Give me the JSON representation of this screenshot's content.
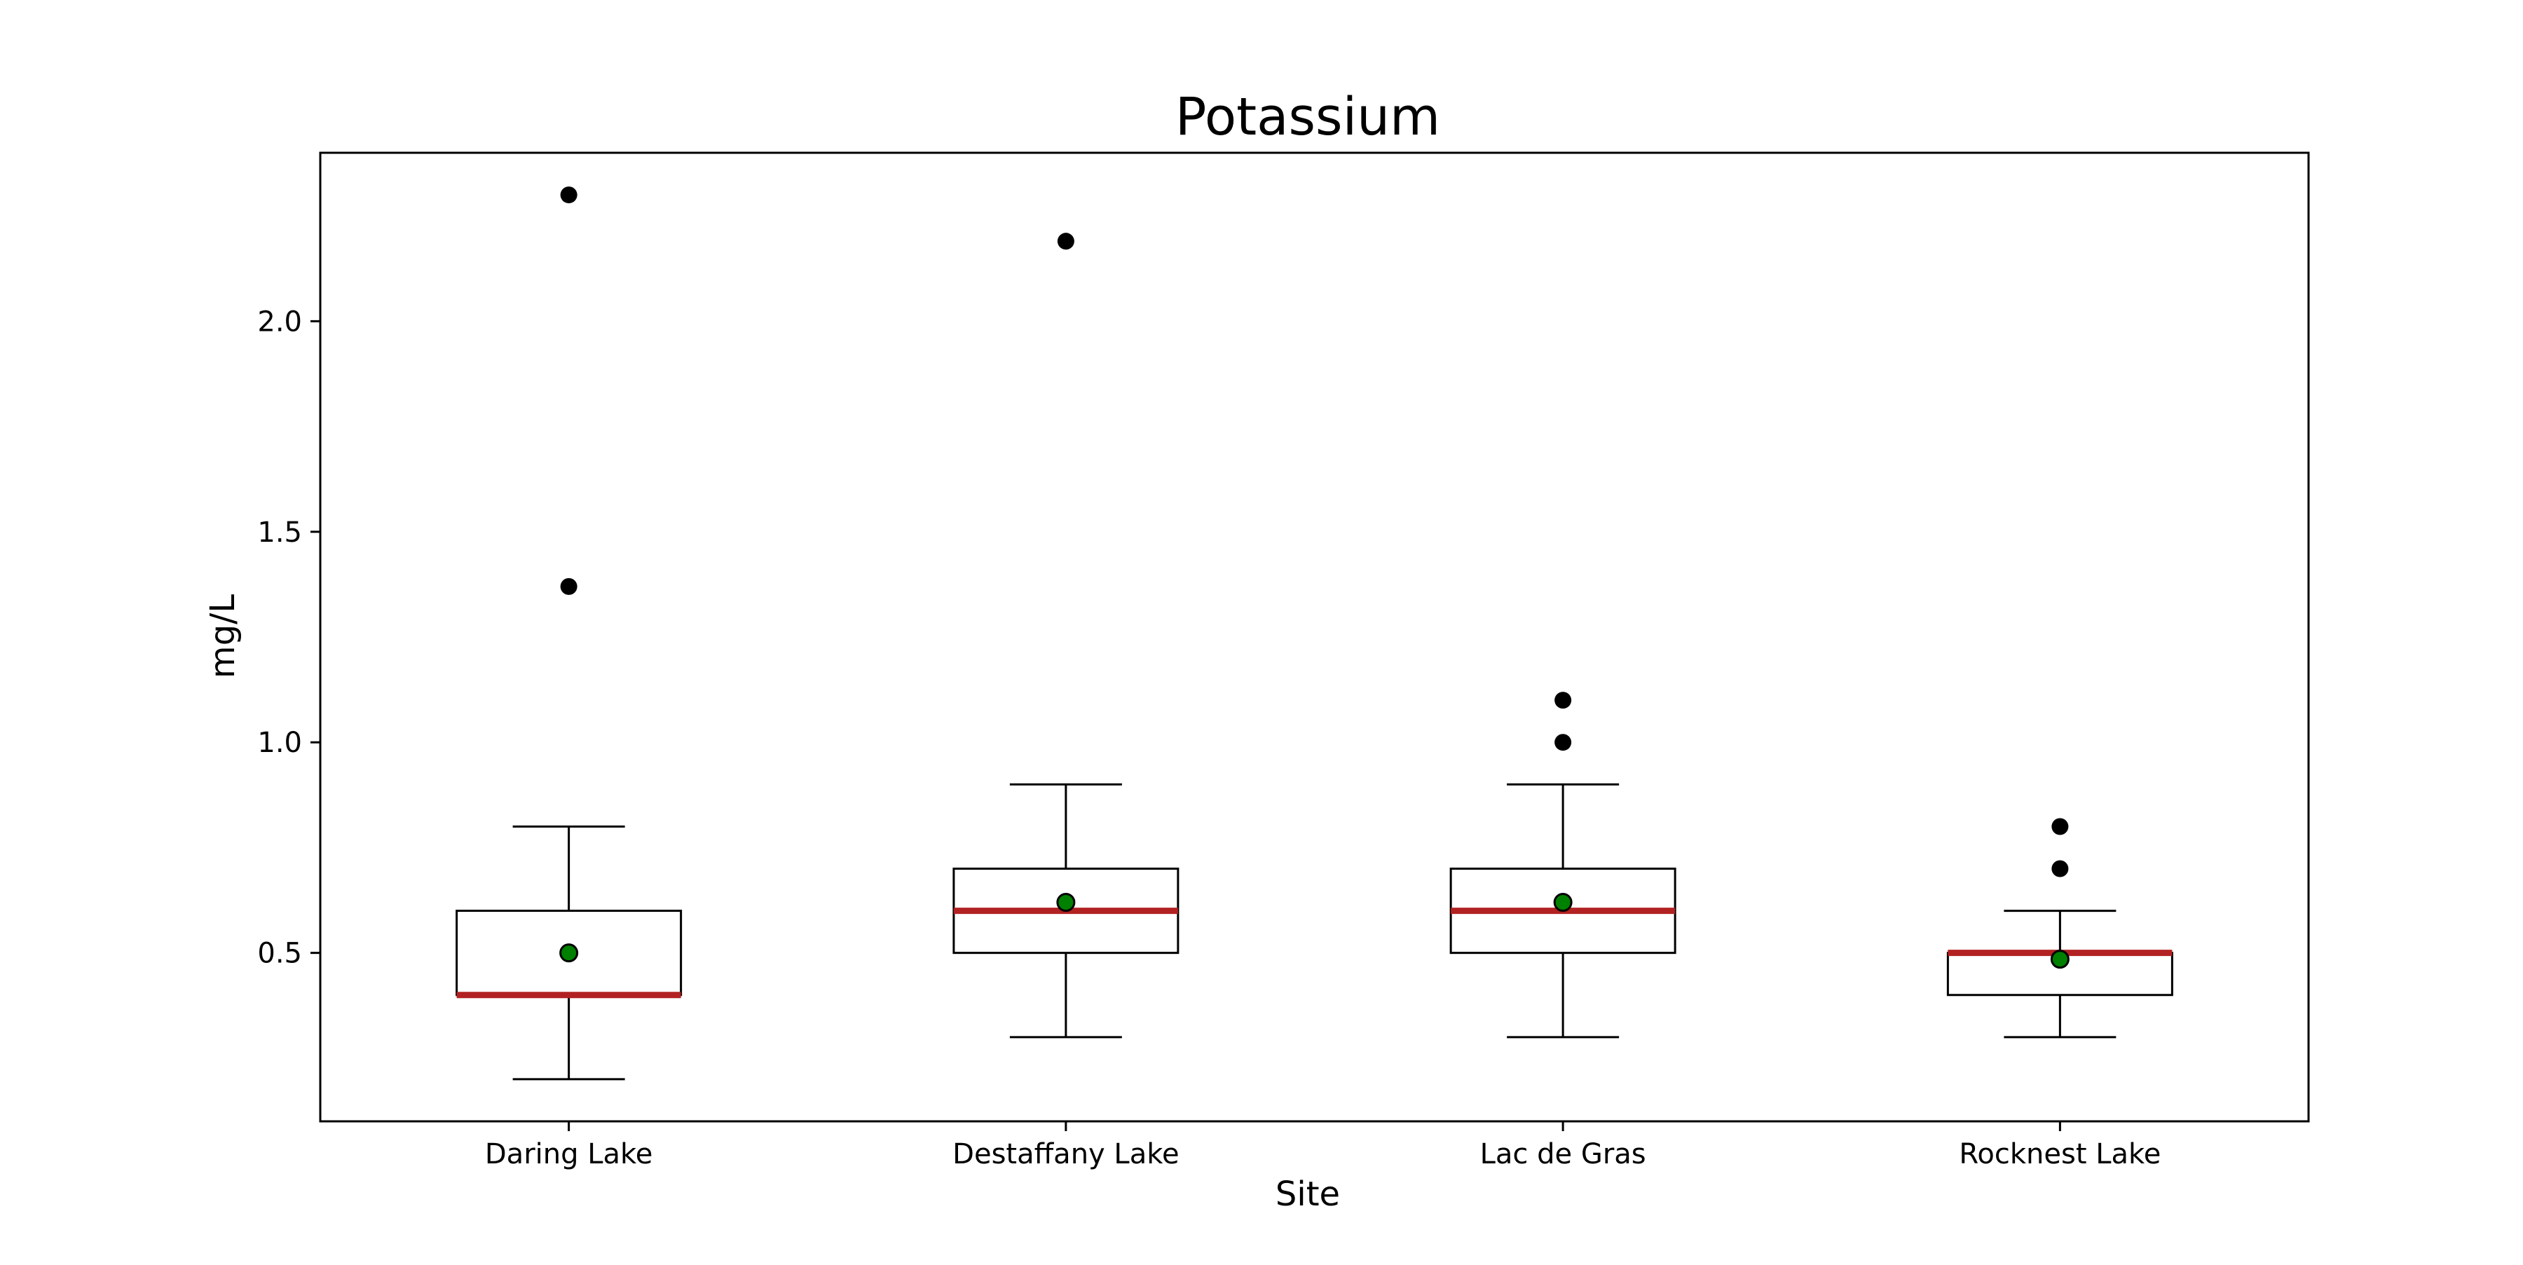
{
  "chart_data": {
    "type": "boxplot",
    "title": "Potassium",
    "xlabel": "Site",
    "ylabel": "mg/L",
    "ylim": [
      0.1,
      2.4
    ],
    "yticks": [
      "0.5",
      "1.0",
      "1.5",
      "2.0"
    ],
    "grid": false,
    "categories": [
      "Daring Lake",
      "Destaffany Lake",
      "Lac de Gras",
      "Rocknest Lake"
    ],
    "boxes": [
      {
        "category": "Daring Lake",
        "whisker_low": 0.2,
        "q1": 0.4,
        "median": 0.4,
        "q3": 0.6,
        "whisker_high": 0.8,
        "mean": 0.5,
        "outliers": [
          1.37,
          2.3
        ]
      },
      {
        "category": "Destaffany Lake",
        "whisker_low": 0.3,
        "q1": 0.5,
        "median": 0.6,
        "q3": 0.7,
        "whisker_high": 0.9,
        "mean": 0.62,
        "outliers": [
          2.19
        ]
      },
      {
        "category": "Lac de Gras",
        "whisker_low": 0.3,
        "q1": 0.5,
        "median": 0.6,
        "q3": 0.7,
        "whisker_high": 0.9,
        "mean": 0.62,
        "outliers": [
          1.0,
          1.1
        ]
      },
      {
        "category": "Rocknest Lake",
        "whisker_low": 0.3,
        "q1": 0.4,
        "median": 0.5,
        "q3": 0.5,
        "whisker_high": 0.6,
        "mean": 0.485,
        "outliers": [
          0.7,
          0.8
        ]
      }
    ],
    "colors": {
      "median": "#b22222",
      "mean_fill": "#008000",
      "outlier": "#000000",
      "box_edge": "#000000"
    }
  }
}
